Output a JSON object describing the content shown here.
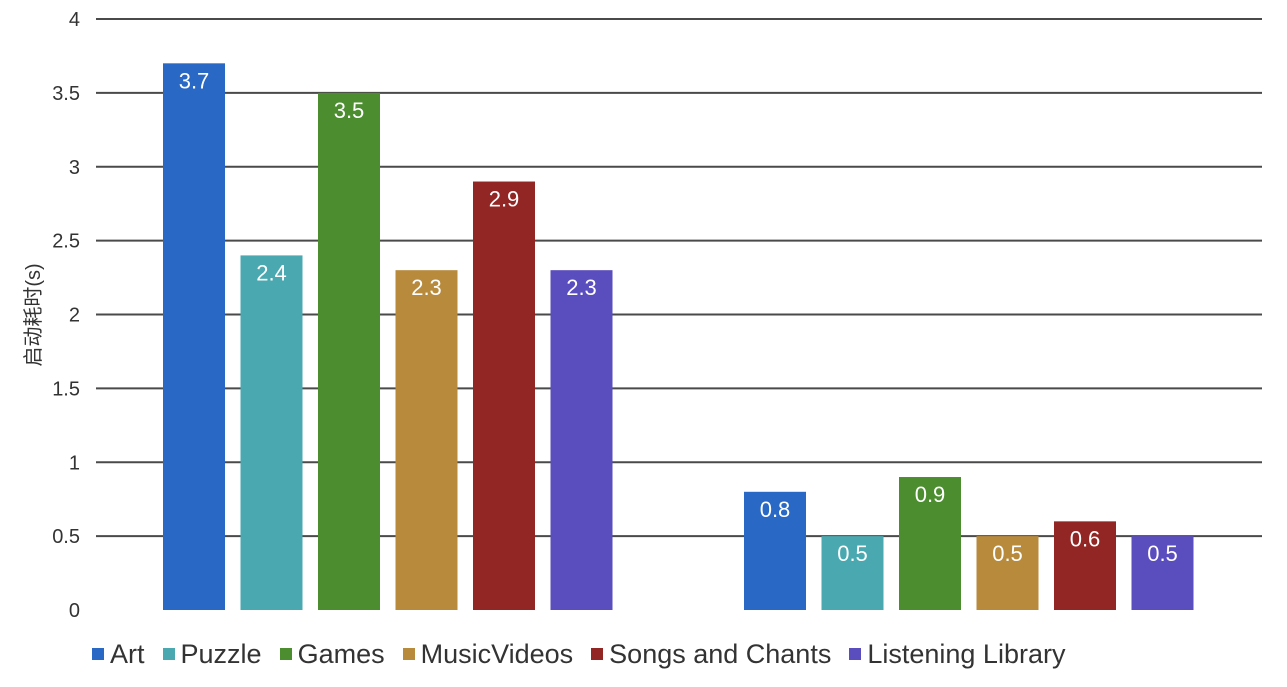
{
  "chart_data": {
    "type": "bar",
    "title": "",
    "xlabel": "",
    "ylabel": "启动耗时(s)",
    "ylim": [
      0,
      4
    ],
    "yticks": [
      "0",
      "0.5",
      "1",
      "1.5",
      "2",
      "2.5",
      "3",
      "3.5",
      "4"
    ],
    "grid": true,
    "legend_position": "bottom",
    "categories": [
      "",
      ""
    ],
    "series": [
      {
        "name": "Art",
        "color": "#2968c4",
        "values": [
          3.7,
          0.8
        ]
      },
      {
        "name": "Puzzle",
        "color": "#4aa8b0",
        "values": [
          2.4,
          0.5
        ]
      },
      {
        "name": "Games",
        "color": "#4c8d30",
        "values": [
          3.5,
          0.9
        ]
      },
      {
        "name": "MusicVideos",
        "color": "#b88a3c",
        "values": [
          2.3,
          0.5
        ]
      },
      {
        "name": "Songs and Chants",
        "color": "#922624",
        "values": [
          2.9,
          0.6
        ]
      },
      {
        "name": "Listening Library",
        "color": "#5a4dbd",
        "values": [
          2.3,
          0.5
        ]
      }
    ]
  }
}
